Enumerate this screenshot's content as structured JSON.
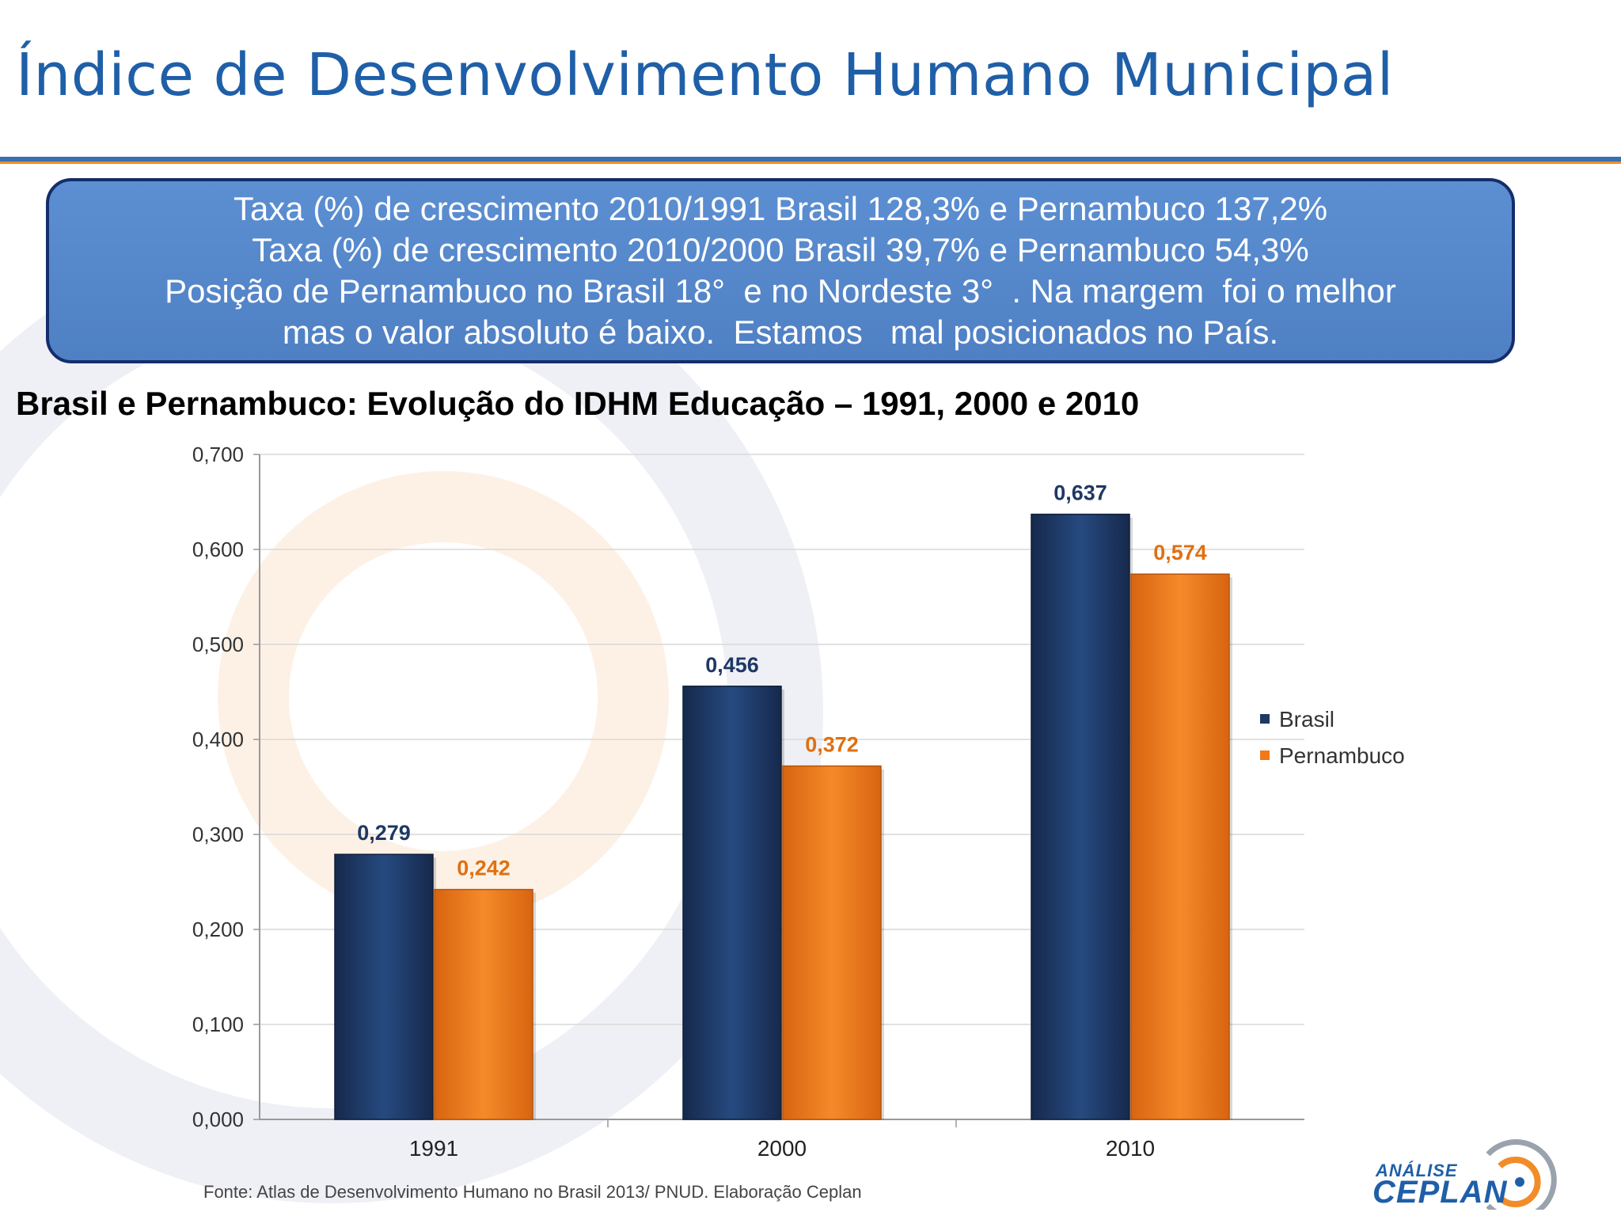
{
  "page": {
    "title": "Índice de Desenvolvimento Humano Municipal",
    "summary_lines": [
      "Taxa (%) de crescimento 2010/1991 Brasil 128,3% e Pernambuco 137,2%",
      "Taxa (%) de crescimento 2010/2000 Brasil 39,7% e Pernambuco 54,3%",
      "Posição de Pernambuco no Brasil 18°  e no Nordeste 3°  . Na margem  foi o melhor",
      "mas o valor absoluto é baixo.  Estamos   mal posicionados no País."
    ],
    "source_note": "Fonte: Atlas de Desenvolvimento Humano no Brasil 2013/ PNUD. Elaboração Ceplan",
    "logo": {
      "small_text": "ANÁLISE",
      "big_text": "CEPLAN"
    }
  },
  "colors": {
    "title_blue": "#1f5fa8",
    "box_fill": "#5585c8",
    "box_border": "#142d6b",
    "brasil": "#1f3864",
    "pernambuco": "#f07818",
    "brasil_label": "#1f3864",
    "pernambuco_label": "#e07010"
  },
  "chart_data": {
    "type": "bar",
    "title": "Brasil e Pernambuco: Evolução do IDHM Educação – 1991, 2000 e 2010",
    "categories": [
      "1991",
      "2000",
      "2010"
    ],
    "series": [
      {
        "name": "Brasil",
        "values": [
          0.279,
          0.456,
          0.637
        ],
        "labels": [
          "0,279",
          "0,456",
          "0,637"
        ]
      },
      {
        "name": "Pernambuco",
        "values": [
          0.242,
          0.372,
          0.574
        ],
        "labels": [
          "0,242",
          "0,372",
          "0,574"
        ]
      }
    ],
    "yticks": [
      "0,000",
      "0,100",
      "0,200",
      "0,300",
      "0,400",
      "0,500",
      "0,600",
      "0,700"
    ],
    "ylim": [
      0,
      0.7
    ],
    "grid": true,
    "legend": "right"
  }
}
